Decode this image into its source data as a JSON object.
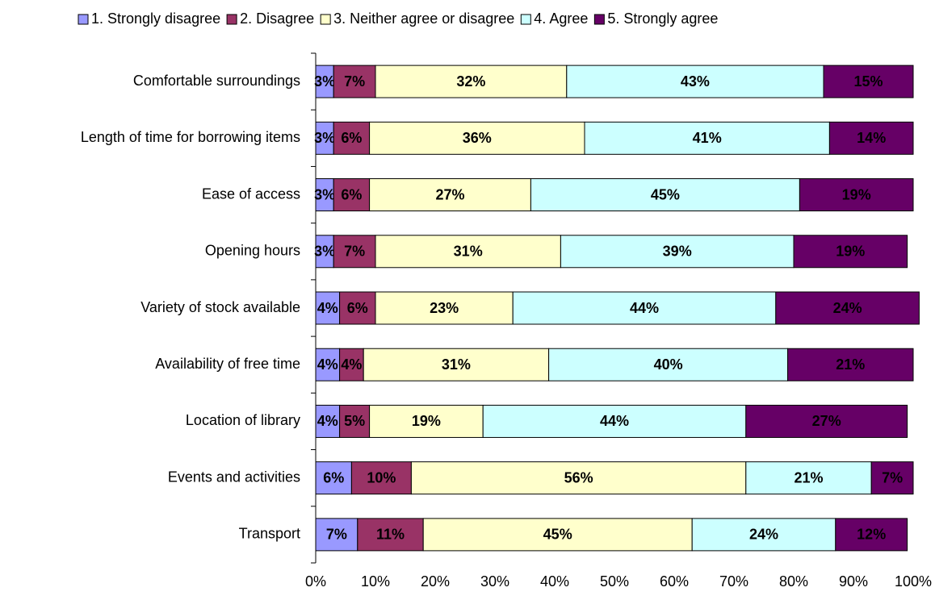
{
  "chart_data": {
    "type": "stacked_bar_horizontal",
    "categories": [
      "Comfortable surroundings",
      "Length of time for borrowing items",
      "Ease of access",
      "Opening hours",
      "Variety of stock available",
      "Availability of free time",
      "Location of library",
      "Events and activities",
      "Transport"
    ],
    "series": [
      {
        "name": "1. Strongly disagree",
        "color": "#9999ff",
        "values": [
          3,
          3,
          3,
          3,
          4,
          4,
          4,
          6,
          7
        ],
        "value_labels": [
          "3%",
          "3%",
          "3%",
          "3%",
          "4%",
          "4%",
          "4%",
          "6%",
          "7%"
        ]
      },
      {
        "name": "2. Disagree",
        "color": "#993366",
        "values": [
          7,
          6,
          6,
          7,
          6,
          4,
          5,
          10,
          11
        ],
        "value_labels": [
          "7%",
          "6%",
          "6%",
          "7%",
          "6%",
          "4%",
          "5%",
          "10%",
          "11%"
        ]
      },
      {
        "name": "3. Neither agree or disagree",
        "color": "#ffffcc",
        "values": [
          32,
          36,
          27,
          31,
          23,
          31,
          19,
          56,
          45
        ],
        "value_labels": [
          "32%",
          "36%",
          "27%",
          "31%",
          "23%",
          "31%",
          "19%",
          "56%",
          "45%"
        ]
      },
      {
        "name": "4. Agree",
        "color": "#ccffff",
        "values": [
          43,
          41,
          45,
          39,
          44,
          40,
          44,
          21,
          24
        ],
        "value_labels": [
          "43%",
          "41%",
          "45%",
          "39%",
          "44%",
          "40%",
          "44%",
          "21%",
          "24%"
        ]
      },
      {
        "name": "5. Strongly agree",
        "color": "#660066",
        "values": [
          15,
          14,
          19,
          19,
          24,
          21,
          27,
          7,
          12
        ],
        "value_labels": [
          "15%",
          "14%",
          "19%",
          "19%",
          "24%",
          "21%",
          "27%",
          "7%",
          "12%"
        ]
      }
    ],
    "xlim": [
      0,
      100
    ],
    "xticks": [
      {
        "value": 0,
        "label": "0%"
      },
      {
        "value": 10,
        "label": "10%"
      },
      {
        "value": 20,
        "label": "20%"
      },
      {
        "value": 30,
        "label": "30%"
      },
      {
        "value": 40,
        "label": "40%"
      },
      {
        "value": 50,
        "label": "50%"
      },
      {
        "value": 60,
        "label": "60%"
      },
      {
        "value": 70,
        "label": "70%"
      },
      {
        "value": 80,
        "label": "80%"
      },
      {
        "value": 90,
        "label": "90%"
      },
      {
        "value": 100,
        "label": "100%"
      }
    ],
    "legend": "top"
  }
}
